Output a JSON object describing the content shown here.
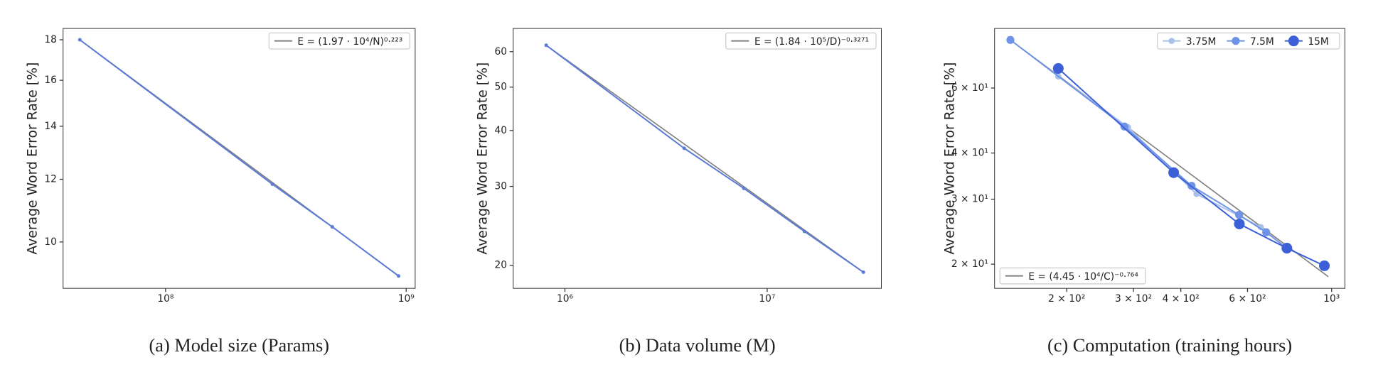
{
  "chart_data": [
    {
      "type": "line",
      "title": "(a) Model size (Params)",
      "y_label": "Average Word Error Rate [%]",
      "xscale": "log",
      "yscale": "log",
      "xlim": [
        37500000,
        1090000000
      ],
      "ylim": [
        8.74,
        18.6
      ],
      "xticks": [
        {
          "value": 100000000,
          "label": "10⁸"
        },
        {
          "value": 1000000000,
          "label": "10⁹"
        }
      ],
      "yticks": [
        10,
        12,
        14,
        16,
        18
      ],
      "legend": "upper right",
      "series": [
        {
          "name": "E = (1.97 · 10⁴/N)⁰·²²³",
          "color": "#808080",
          "marker": false,
          "x": [
            44000000,
            930000000
          ],
          "values": [
            18.0,
            9.06
          ]
        },
        {
          "color": "#5b7bd6",
          "marker": true,
          "x": [
            44000000,
            278000000,
            493000000,
            930000000
          ],
          "values": [
            18.0,
            11.83,
            10.45,
            9.06
          ]
        }
      ]
    },
    {
      "type": "line",
      "title": "(b) Data volume (M)",
      "y_label": "Average Word Error Rate [%]",
      "xscale": "log",
      "yscale": "log",
      "xlim": [
        555000,
        36700000
      ],
      "ylim": [
        17.76,
        67.6
      ],
      "xticks": [
        {
          "value": 1000000,
          "label": "10⁶"
        },
        {
          "value": 10000000,
          "label": "10⁷"
        }
      ],
      "yticks": [
        20,
        30,
        40,
        50,
        60
      ],
      "legend": "upper right",
      "series": [
        {
          "name": "E = (1.84 · 10⁵/D)⁻⁰·³²⁷¹",
          "color": "#808080",
          "marker": false,
          "x": [
            808000,
            29900000
          ],
          "values": [
            62,
            19.3
          ]
        },
        {
          "color": "#5b7bd6",
          "marker": true,
          "x": [
            808000,
            3890000,
            7670000,
            15300000,
            29900000
          ],
          "values": [
            62,
            36.5,
            29.7,
            23.8,
            19.3
          ]
        }
      ]
    },
    {
      "type": "line",
      "title": "(c) Computation (training hours)",
      "y_label": "Average Word Error Rate [%]",
      "xscale": "log",
      "yscale": "log",
      "xlim": [
        129,
        1084
      ],
      "ylim": [
        17.2,
        87
      ],
      "xticks": [
        {
          "value": 200,
          "label": "2 × 10²"
        },
        {
          "value": 300,
          "label": "3 × 10²"
        },
        {
          "value": 400,
          "label": "4 × 10²"
        },
        {
          "value": 600,
          "label": "6 × 10²"
        },
        {
          "value": 1000,
          "label": "10³"
        }
      ],
      "yticks": [
        {
          "value": 20,
          "label": "2 × 10¹"
        },
        {
          "value": 30,
          "label": "3 × 10¹"
        },
        {
          "value": 40,
          "label": "4 × 10¹"
        },
        {
          "value": 60,
          "label": "6 × 10¹"
        }
      ],
      "legend": "upper right",
      "series": [
        {
          "name": "E = (4.45 · 10⁴/C)⁻⁰·⁷⁶⁴",
          "color": "#808080",
          "marker": false,
          "legend": "lower left",
          "x": [
            142,
            980
          ],
          "values": [
            81,
            18.5
          ]
        },
        {
          "name": "3.75M",
          "color": "#a9c1ea",
          "marker": true,
          "size": 3.5,
          "x": [
            190,
            290,
            440,
            650
          ],
          "values": [
            64.5,
            47,
            31,
            25.2
          ]
        },
        {
          "name": "7.5M",
          "color": "#6e93e6",
          "marker": true,
          "size": 4.5,
          "x": [
            142,
            284,
            427,
            570,
            672,
            762
          ],
          "values": [
            81,
            47.2,
            32.6,
            27.2,
            24.4,
            22.1
          ]
        },
        {
          "name": "15M",
          "color": "#3d60d8",
          "marker": true,
          "size": 6,
          "x": [
            190,
            383,
            571,
            762,
            957
          ],
          "values": [
            67.8,
            35.4,
            25.7,
            22.1,
            19.8
          ]
        }
      ]
    }
  ]
}
